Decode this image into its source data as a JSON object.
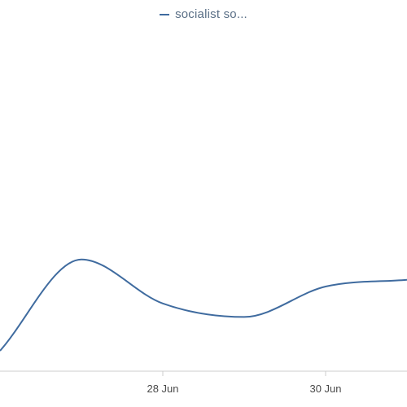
{
  "chart_data": {
    "type": "line",
    "x_axis": {
      "tick_labels": [
        "28 Jun",
        "30 Jun"
      ],
      "tick_values": [
        "2024-06-28",
        "2024-06-30"
      ],
      "range": [
        "2024-06-26",
        "2024-07-01"
      ]
    },
    "y_axis": {
      "range": [
        0,
        100
      ],
      "labels_visible": false
    },
    "grid": false,
    "legend": {
      "placement": "top-center"
    },
    "series": [
      {
        "name": "socialist so...",
        "color": "#3f6b9f",
        "points": [
          {
            "x": "2024-06-26T00:00",
            "y": 6
          },
          {
            "x": "2024-06-27T00:00",
            "y": 33
          },
          {
            "x": "2024-06-28T00:00",
            "y": 20
          },
          {
            "x": "2024-06-29T00:00",
            "y": 16
          },
          {
            "x": "2024-06-30T00:00",
            "y": 25
          },
          {
            "x": "2024-07-01T00:00",
            "y": 27
          }
        ]
      }
    ]
  }
}
